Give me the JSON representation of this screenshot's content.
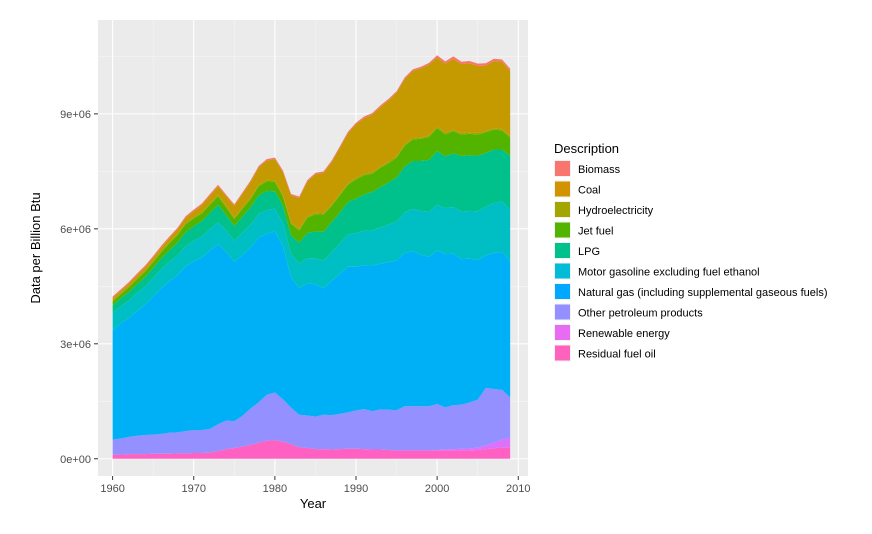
{
  "chart_data": {
    "type": "area",
    "stacked": true,
    "xlabel": "Year",
    "ylabel": "Data per Billion Btu",
    "xlim": [
      1958.2,
      2011.2
    ],
    "ylim": [
      -450000,
      11450000
    ],
    "x_ticks": [
      1960,
      1970,
      1980,
      1990,
      2000,
      2010
    ],
    "x_tick_labels": [
      "1960",
      "1970",
      "1980",
      "1990",
      "2000",
      "2010"
    ],
    "y_ticks": [
      0,
      3000000,
      6000000,
      9000000
    ],
    "y_tick_labels": [
      "0e+00",
      "3e+06",
      "6e+06",
      "9e+06"
    ],
    "grid": true,
    "legend_position": "right",
    "legend_title": "Description",
    "x": [
      1960,
      1961,
      1962,
      1963,
      1964,
      1965,
      1966,
      1967,
      1968,
      1969,
      1970,
      1971,
      1972,
      1973,
      1974,
      1975,
      1976,
      1977,
      1978,
      1979,
      1980,
      1981,
      1982,
      1983,
      1984,
      1985,
      1986,
      1987,
      1988,
      1989,
      1990,
      1991,
      1992,
      1993,
      1994,
      1995,
      1996,
      1997,
      1998,
      1999,
      2000,
      2001,
      2002,
      2003,
      2004,
      2005,
      2006,
      2007,
      2008,
      2009
    ],
    "series": [
      {
        "name": "Residual fuel oil",
        "color": "#FF61C3",
        "values": [
          100000,
          110000,
          120000,
          120000,
          120000,
          130000,
          130000,
          130000,
          140000,
          140000,
          150000,
          150000,
          160000,
          200000,
          250000,
          280000,
          320000,
          360000,
          420000,
          470000,
          480000,
          450000,
          380000,
          300000,
          280000,
          250000,
          250000,
          240000,
          250000,
          260000,
          260000,
          250000,
          240000,
          240000,
          230000,
          220000,
          220000,
          220000,
          220000,
          220000,
          220000,
          220000,
          220000,
          220000,
          220000,
          230000,
          250000,
          270000,
          300000,
          300000
        ]
      },
      {
        "name": "Renewable energy",
        "color": "#DB72FB",
        "values": [
          0,
          0,
          0,
          0,
          0,
          0,
          0,
          0,
          0,
          0,
          0,
          0,
          0,
          0,
          0,
          0,
          0,
          0,
          0,
          0,
          0,
          0,
          0,
          0,
          0,
          0,
          0,
          0,
          0,
          0,
          0,
          0,
          0,
          0,
          0,
          0,
          0,
          0,
          0,
          0,
          10000,
          20000,
          30000,
          40000,
          50000,
          60000,
          100000,
          150000,
          200000,
          250000
        ]
      },
      {
        "name": "Other petroleum products",
        "color": "#9590FF",
        "values": [
          400000,
          420000,
          450000,
          480000,
          500000,
          500000,
          520000,
          550000,
          550000,
          580000,
          600000,
          600000,
          620000,
          700000,
          750000,
          700000,
          800000,
          950000,
          1050000,
          1200000,
          1250000,
          1100000,
          950000,
          850000,
          850000,
          850000,
          900000,
          900000,
          920000,
          950000,
          1000000,
          1050000,
          1000000,
          1050000,
          1050000,
          1050000,
          1150000,
          1150000,
          1150000,
          1150000,
          1200000,
          1100000,
          1150000,
          1150000,
          1200000,
          1250000,
          1500000,
          1400000,
          1300000,
          1050000
        ]
      },
      {
        "name": "Natural gas (including supplemental gaseous fuels)",
        "color": "#00B0F6",
        "values": [
          2850000,
          3000000,
          3100000,
          3250000,
          3400000,
          3600000,
          3800000,
          3950000,
          4100000,
          4300000,
          4400000,
          4500000,
          4650000,
          4700000,
          4400000,
          4150000,
          4200000,
          4200000,
          4300000,
          4200000,
          4200000,
          4000000,
          3400000,
          3300000,
          3450000,
          3450000,
          3300000,
          3500000,
          3650000,
          3800000,
          3750000,
          3750000,
          3800000,
          3800000,
          3850000,
          3900000,
          4000000,
          4050000,
          3950000,
          3900000,
          4000000,
          4000000,
          3950000,
          3800000,
          3750000,
          3650000,
          3450000,
          3550000,
          3600000,
          3550000
        ]
      },
      {
        "name": "Motor gasoline excluding fuel ethanol",
        "color": "#00BFC4",
        "values": [
          450000,
          450000,
          460000,
          470000,
          480000,
          490000,
          500000,
          510000,
          520000,
          530000,
          540000,
          550000,
          560000,
          570000,
          560000,
          560000,
          580000,
          600000,
          620000,
          620000,
          600000,
          600000,
          620000,
          640000,
          660000,
          680000,
          720000,
          760000,
          800000,
          840000,
          880000,
          900000,
          920000,
          950000,
          980000,
          1020000,
          1060000,
          1100000,
          1150000,
          1180000,
          1200000,
          1200000,
          1220000,
          1240000,
          1250000,
          1270000,
          1280000,
          1300000,
          1320000,
          1350000
        ]
      },
      {
        "name": "LPG",
        "color": "#00C08B",
        "values": [
          200000,
          210000,
          220000,
          230000,
          240000,
          260000,
          280000,
          300000,
          330000,
          360000,
          380000,
          400000,
          430000,
          460000,
          400000,
          380000,
          420000,
          450000,
          480000,
          500000,
          450000,
          450000,
          480000,
          550000,
          650000,
          700000,
          750000,
          780000,
          800000,
          850000,
          900000,
          950000,
          1000000,
          1050000,
          1100000,
          1150000,
          1200000,
          1250000,
          1300000,
          1350000,
          1400000,
          1350000,
          1400000,
          1450000,
          1450000,
          1450000,
          1400000,
          1400000,
          1350000,
          1400000
        ]
      },
      {
        "name": "Jet fuel",
        "color": "#53B400",
        "values": [
          100000,
          100000,
          120000,
          130000,
          140000,
          150000,
          160000,
          180000,
          200000,
          210000,
          200000,
          200000,
          210000,
          220000,
          200000,
          190000,
          200000,
          220000,
          240000,
          250000,
          250000,
          240000,
          300000,
          320000,
          400000,
          450000,
          450000,
          420000,
          450000,
          450000,
          500000,
          500000,
          480000,
          500000,
          500000,
          520000,
          540000,
          560000,
          580000,
          600000,
          600000,
          580000,
          580000,
          560000,
          560000,
          550000,
          540000,
          520000,
          500000,
          480000
        ]
      },
      {
        "name": "Hydroelectricity",
        "color": "#A58AFF",
        "display_color": "#A3A500",
        "values": [
          40000,
          40000,
          40000,
          40000,
          40000,
          40000,
          40000,
          40000,
          40000,
          40000,
          40000,
          40000,
          40000,
          40000,
          40000,
          40000,
          40000,
          40000,
          40000,
          40000,
          40000,
          40000,
          40000,
          40000,
          40000,
          40000,
          40000,
          40000,
          40000,
          40000,
          40000,
          40000,
          40000,
          40000,
          40000,
          40000,
          40000,
          40000,
          40000,
          40000,
          40000,
          40000,
          40000,
          40000,
          40000,
          40000,
          40000,
          40000,
          40000,
          40000
        ]
      },
      {
        "name": "Coal",
        "color": "#C49A00",
        "values": [
          50000,
          50000,
          60000,
          70000,
          80000,
          80000,
          90000,
          100000,
          110000,
          130000,
          150000,
          180000,
          200000,
          220000,
          250000,
          300000,
          350000,
          400000,
          450000,
          500000,
          550000,
          600000,
          700000,
          800000,
          900000,
          1000000,
          1050000,
          1100000,
          1200000,
          1300000,
          1400000,
          1450000,
          1500000,
          1550000,
          1600000,
          1650000,
          1700000,
          1750000,
          1800000,
          1850000,
          1800000,
          1800000,
          1850000,
          1800000,
          1800000,
          1750000,
          1700000,
          1750000,
          1750000,
          1700000
        ]
      },
      {
        "name": "Biomass",
        "color": "#F8766D",
        "values": [
          40000,
          40000,
          40000,
          40000,
          40000,
          40000,
          40000,
          40000,
          40000,
          40000,
          40000,
          40000,
          40000,
          40000,
          40000,
          40000,
          40000,
          40000,
          40000,
          40000,
          40000,
          40000,
          40000,
          40000,
          40000,
          40000,
          40000,
          40000,
          40000,
          40000,
          40000,
          40000,
          40000,
          40000,
          40000,
          40000,
          40000,
          40000,
          40000,
          40000,
          60000,
          60000,
          60000,
          60000,
          60000,
          60000,
          60000,
          60000,
          60000,
          60000
        ]
      }
    ],
    "legend_order": [
      "Biomass",
      "Coal",
      "Hydroelectricity",
      "Jet fuel",
      "LPG",
      "Motor gasoline excluding fuel ethanol",
      "Natural gas (including supplemental gaseous fuels)",
      "Other petroleum products",
      "Renewable energy",
      "Residual fuel oil"
    ],
    "legend_colors": [
      "#F8766D",
      "#D39200",
      "#A3A500",
      "#53B400",
      "#00C08B",
      "#00BCD8",
      "#00A9FF",
      "#9590FF",
      "#E76BF3",
      "#FF62BC"
    ]
  }
}
